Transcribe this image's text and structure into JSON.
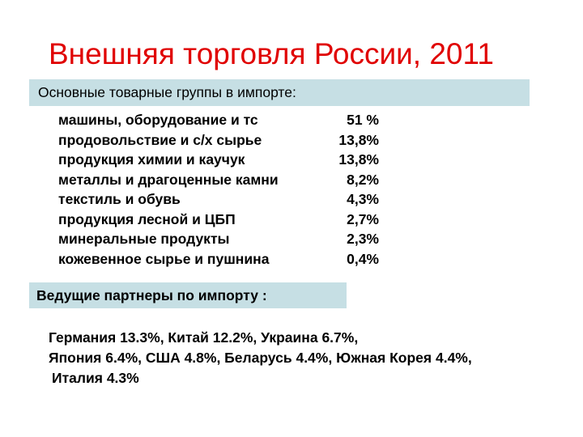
{
  "slide": {
    "title": "Внешняя торговля России, 2011"
  },
  "import_goods": {
    "heading": "Основные товарные группы в импорте:",
    "items": [
      {
        "name": "машины, оборудование и тс",
        "share": "51 %"
      },
      {
        "name": "продовольствие и  с/х сырье",
        "share": "13,8%"
      },
      {
        "name": "продукция химии и каучук",
        "share": "13,8%"
      },
      {
        "name": "металлы и драгоценные камни",
        "share": "8,2%"
      },
      {
        "name": "текстиль и обувь",
        "share": "4,3%"
      },
      {
        "name": "продукция лесной и ЦБП",
        "share": "2,7%"
      },
      {
        "name": "минеральные продукты",
        "share": "2,3%"
      },
      {
        "name": "кожевенное сырье и пушнина",
        "share": "0,4%"
      }
    ]
  },
  "partners": {
    "heading": "Ведущие партнеры по импорту :",
    "lines": [
      "Германия 13.3%, Китай 12.2%, Украина 6.7%,",
      "Япония 6.4%, США 4.8%, Беларусь 4.4%, Южная Корея 4.4%,",
      "Италия 4.3%"
    ]
  },
  "colors": {
    "title": "#e00000",
    "band_background": "#c6dfe4",
    "text": "#000000",
    "background": "#ffffff"
  }
}
